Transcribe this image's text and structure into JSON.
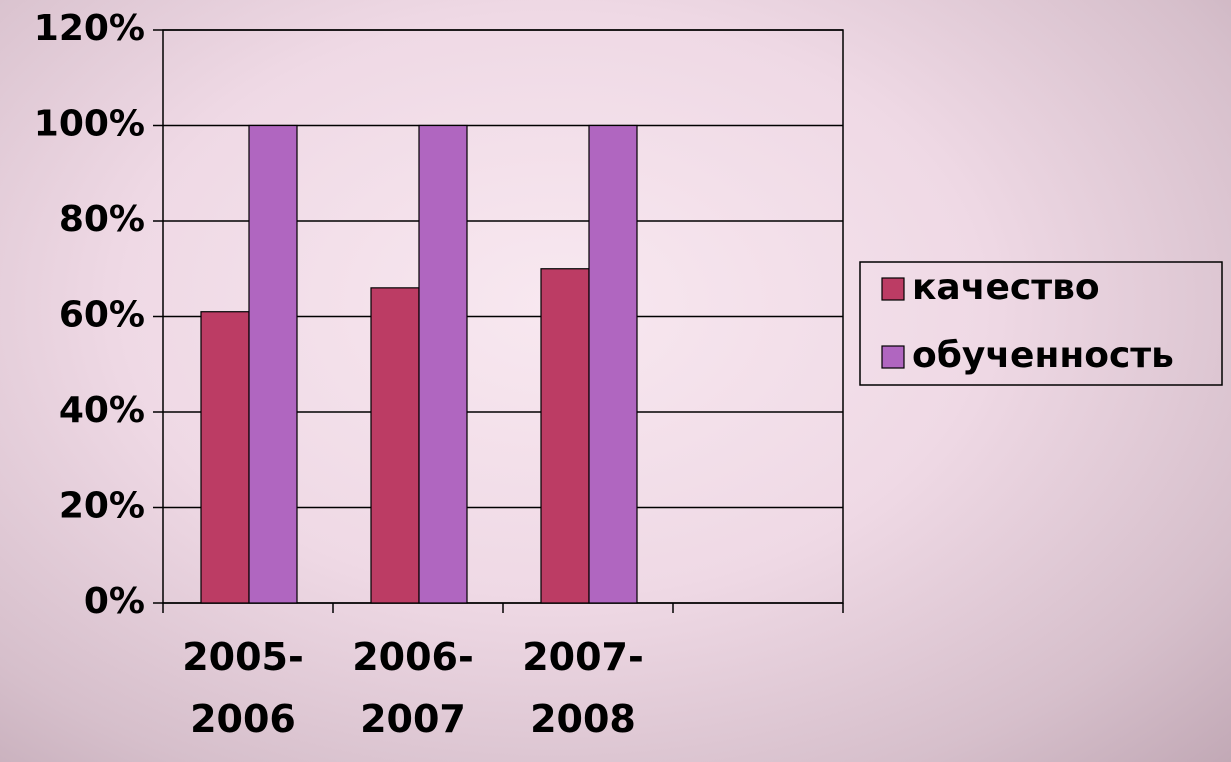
{
  "chart_data": {
    "type": "bar",
    "categories": [
      "2005-\n2006",
      "2006-\n2007",
      "2007-\n2008",
      null
    ],
    "series": [
      {
        "name": "качество",
        "color": "#bc3c64",
        "values": [
          61,
          66,
          70,
          null
        ]
      },
      {
        "name": "обученность",
        "color": "#b066c0",
        "values": [
          100,
          100,
          100,
          null
        ]
      }
    ],
    "ylim": [
      0,
      120
    ],
    "yticks": [
      {
        "value": 0,
        "label": "0%"
      },
      {
        "value": 20,
        "label": "20%"
      },
      {
        "value": 40,
        "label": "40%"
      },
      {
        "value": 60,
        "label": "60%"
      },
      {
        "value": 80,
        "label": "80%"
      },
      {
        "value": 100,
        "label": "100%"
      },
      {
        "value": 120,
        "label": "120%"
      }
    ],
    "grid": true,
    "legend": "right"
  }
}
